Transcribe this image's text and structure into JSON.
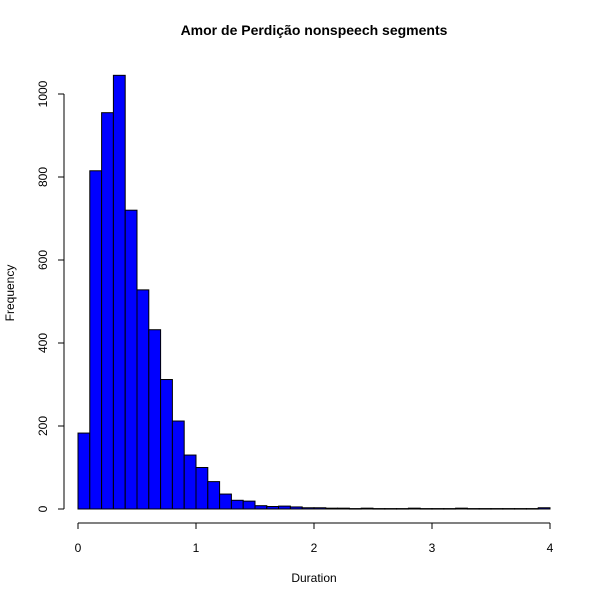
{
  "chart_data": {
    "type": "bar",
    "title": "Amor de Perdição nonspeech segments",
    "xlabel": "Duration",
    "ylabel": "Frequency",
    "xlim": [
      0,
      4
    ],
    "ylim": [
      0,
      1050
    ],
    "x_ticks": [
      0,
      1,
      2,
      3,
      4
    ],
    "y_ticks": [
      0,
      200,
      400,
      600,
      800,
      1000
    ],
    "bin_width": 0.1,
    "bins_start": [
      0.0,
      0.1,
      0.2,
      0.3,
      0.4,
      0.5,
      0.6,
      0.7,
      0.8,
      0.9,
      1.0,
      1.1,
      1.2,
      1.3,
      1.4,
      1.5,
      1.6,
      1.7,
      1.8,
      1.9,
      2.0,
      2.1,
      2.2,
      2.3,
      2.4,
      2.5,
      2.6,
      2.7,
      2.8,
      2.9,
      3.0,
      3.1,
      3.2,
      3.3,
      3.4,
      3.5,
      3.6,
      3.7,
      3.8,
      3.9
    ],
    "values": [
      183,
      815,
      955,
      1045,
      720,
      528,
      432,
      312,
      212,
      130,
      100,
      66,
      36,
      21,
      19,
      8,
      6,
      7,
      5,
      3,
      3,
      2,
      2,
      1,
      2,
      1,
      1,
      1,
      2,
      1,
      1,
      1,
      2,
      1,
      1,
      1,
      1,
      1,
      1,
      3
    ],
    "bar_color": "#0000ff",
    "bar_edge_color": "#000000",
    "grid": false
  }
}
